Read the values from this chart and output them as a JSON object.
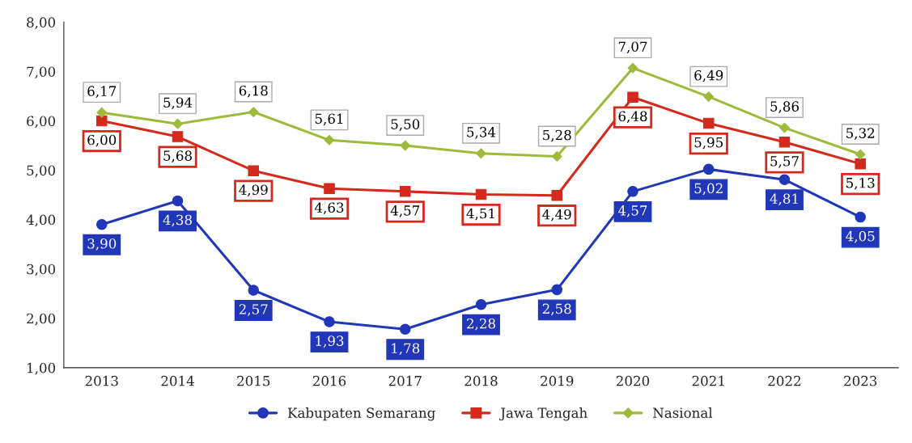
{
  "chart_data": {
    "type": "line",
    "categories": [
      "2013",
      "2014",
      "2015",
      "2016",
      "2017",
      "2018",
      "2019",
      "2020",
      "2021",
      "2022",
      "2023"
    ],
    "series": [
      {
        "name": "Kabupaten Semarang",
        "color": "#2137b8",
        "marker": "circle",
        "values": [
          3.9,
          4.38,
          2.57,
          1.93,
          1.78,
          2.28,
          2.58,
          4.57,
          5.02,
          4.81,
          4.05
        ],
        "value_labels": [
          "3,90",
          "4,38",
          "2,57",
          "1,93",
          "1,78",
          "2,28",
          "2,58",
          "4,57",
          "5,02",
          "4,81",
          "4,05"
        ]
      },
      {
        "name": "Jawa Tengah",
        "color": "#d42a1e",
        "marker": "square",
        "values": [
          6.0,
          5.68,
          4.99,
          4.63,
          4.57,
          4.51,
          4.49,
          6.48,
          5.95,
          5.57,
          5.13
        ],
        "value_labels": [
          "6,00",
          "5,68",
          "4,99",
          "4,63",
          "4,57",
          "4,51",
          "4,49",
          "6,48",
          "5,95",
          "5,57",
          "5,13"
        ]
      },
      {
        "name": "Nasional",
        "color": "#9dba3a",
        "marker": "diamond",
        "values": [
          6.17,
          5.94,
          6.18,
          5.61,
          5.5,
          5.34,
          5.28,
          7.07,
          6.49,
          5.86,
          5.32
        ],
        "value_labels": [
          "6,17",
          "5,94",
          "6,18",
          "5,61",
          "5,50",
          "5,34",
          "5,28",
          "7,07",
          "6,49",
          "5,86",
          "5,32"
        ]
      }
    ],
    "ylim": [
      1,
      8
    ],
    "yticks": [
      {
        "value": 1,
        "label": "1,00"
      },
      {
        "value": 2,
        "label": "2,00"
      },
      {
        "value": 3,
        "label": "3,00"
      },
      {
        "value": 4,
        "label": "4,00"
      },
      {
        "value": 5,
        "label": "5,00"
      },
      {
        "value": 6,
        "label": "6,00"
      },
      {
        "value": 7,
        "label": "7,00"
      },
      {
        "value": 8,
        "label": "8,00"
      }
    ],
    "grid": false,
    "legend": "bottom",
    "line_style": "solid"
  }
}
